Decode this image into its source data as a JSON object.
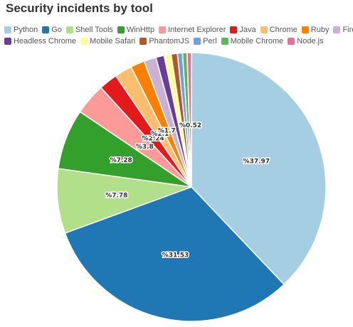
{
  "chart_data": {
    "type": "pie",
    "title": "Security incidents by tool",
    "legend_position": "top",
    "label_format": "%{value}",
    "slices": [
      {
        "name": "Python",
        "value": 37.97,
        "color": "#a6cee3"
      },
      {
        "name": "Go",
        "value": 31.53,
        "color": "#1f78b4"
      },
      {
        "name": "Shell Tools",
        "value": 7.78,
        "color": "#b2df8a"
      },
      {
        "name": "WinHttp",
        "value": 7.28,
        "color": "#33a02c"
      },
      {
        "name": "Internet Explorer",
        "value": 3.8,
        "color": "#fb9a99"
      },
      {
        "name": "Java",
        "value": 2.24,
        "color": "#e31a1c"
      },
      {
        "name": "Chrome",
        "value": 2.1,
        "color": "#fdbf6f"
      },
      {
        "name": "Ruby",
        "value": 1.7,
        "color": "#ff7f00"
      },
      {
        "name": "Firefox",
        "value": 1.45,
        "color": "#cab2d6"
      },
      {
        "name": "Headless Chrome",
        "value": 1.0,
        "color": "#6a3d9a"
      },
      {
        "name": "Mobile Safari",
        "value": 0.85,
        "color": "#ffff99"
      },
      {
        "name": "PhantomJS",
        "value": 0.75,
        "color": "#b15928"
      },
      {
        "name": "Perl",
        "value": 0.6,
        "color": "#6f9fe0"
      },
      {
        "name": "Mobile Chrome",
        "value": 0.55,
        "color": "#5cb85c"
      },
      {
        "name": "Node.js",
        "value": 0.52,
        "color": "#e76f9a"
      }
    ],
    "shown_labels": [
      {
        "slice": 0,
        "text": "%37.97"
      },
      {
        "slice": 1,
        "text": "%31.53"
      },
      {
        "slice": 2,
        "text": "%7.78"
      },
      {
        "slice": 3,
        "text": "%7.28"
      },
      {
        "slice": 4,
        "text": "%3.8"
      },
      {
        "slice": 5,
        "text": "%2.24"
      },
      {
        "slice": 6,
        "text": "%2.1"
      },
      {
        "slice": 7,
        "text": "%1.7"
      },
      {
        "slice": 14,
        "text": "%0.52"
      }
    ]
  }
}
